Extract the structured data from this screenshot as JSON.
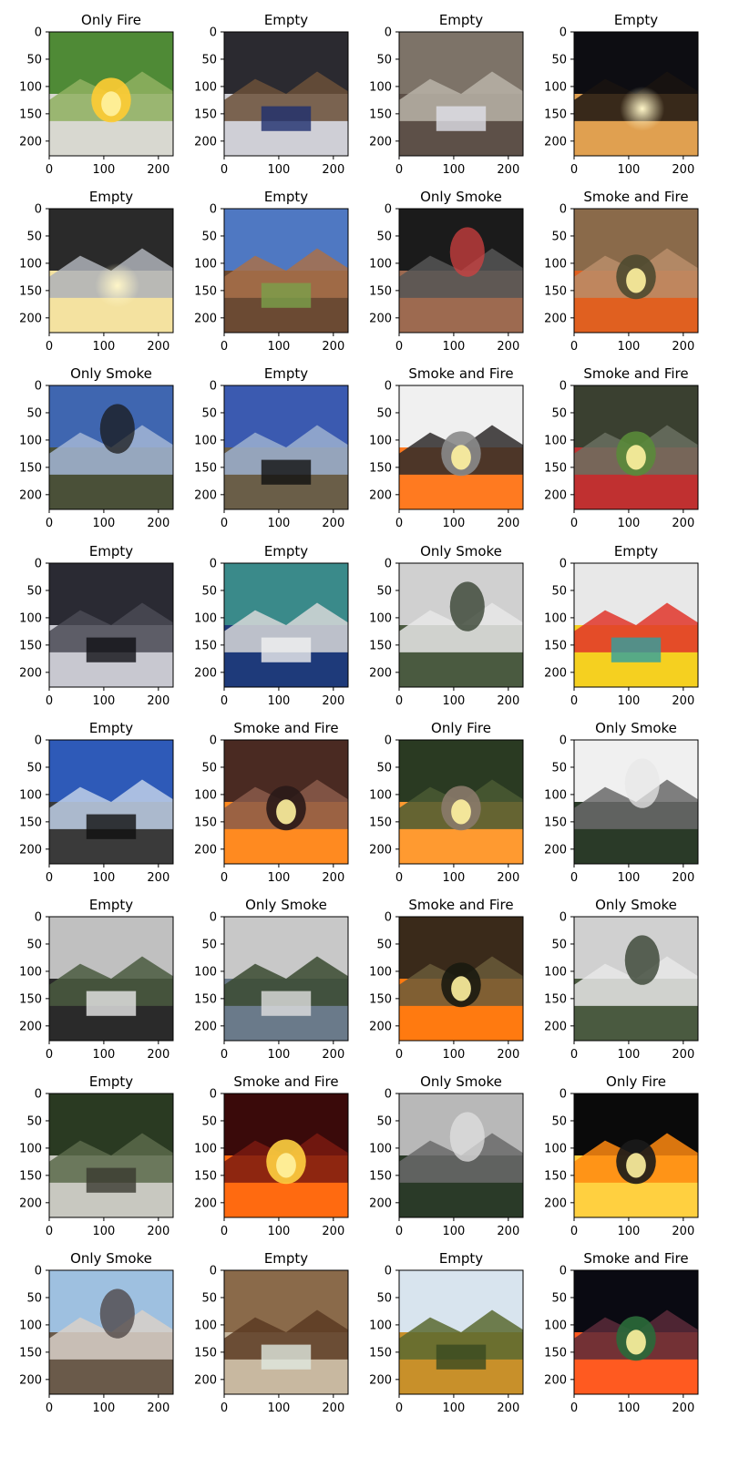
{
  "grid": {
    "rows": 8,
    "cols": 4
  },
  "axes": {
    "x_ticks": [
      0,
      100,
      200
    ],
    "y_ticks": [
      0,
      50,
      100,
      150,
      200
    ],
    "xlim": [
      0,
      227
    ],
    "ylim": [
      227,
      0
    ]
  },
  "panels": [
    {
      "title": "Only Fire",
      "scene": "fire-truck-lawn",
      "colors": [
        "#4f8a36",
        "#8fb060",
        "#d8d8d0",
        "#ffcc33"
      ]
    },
    {
      "title": "Empty",
      "scene": "lecture-hall",
      "colors": [
        "#2b2a30",
        "#6b5038",
        "#cfcfd6",
        "#1e2e6e"
      ]
    },
    {
      "title": "Empty",
      "scene": "rainy-street-crowd",
      "colors": [
        "#7d7368",
        "#b8b3a8",
        "#5d5048",
        "#e0e0e8"
      ]
    },
    {
      "title": "Empty",
      "scene": "night-horizon-glow",
      "colors": [
        "#0d0d12",
        "#1a1410",
        "#e0a050",
        "#fff0c0"
      ]
    },
    {
      "title": "Empty",
      "scene": "sunset-clouds",
      "colors": [
        "#2a2a2a",
        "#aeb1b8",
        "#f4e2a0",
        "#151515"
      ]
    },
    {
      "title": "Empty",
      "scene": "mountain-valley",
      "colors": [
        "#4f78c2",
        "#a8704a",
        "#6b4a33",
        "#7ba04a"
      ]
    },
    {
      "title": "Only Smoke",
      "scene": "building-black-smoke",
      "colors": [
        "#1b1b1b",
        "#555555",
        "#9d6a50",
        "#d04040"
      ]
    },
    {
      "title": "Smoke and Fire",
      "scene": "firefighter-brush-fire",
      "colors": [
        "#8a6a4a",
        "#b88d6a",
        "#e06020",
        "#4e4a30"
      ]
    },
    {
      "title": "Only Smoke",
      "scene": "fisheye-mountain-smoke",
      "colors": [
        "#3f66b0",
        "#a3b6d6",
        "#4a5038",
        "#1a1a1a"
      ]
    },
    {
      "title": "Empty",
      "scene": "fisheye-radio-tower",
      "colors": [
        "#3b5ab0",
        "#9cb0d0",
        "#6a5e48",
        "#101010"
      ]
    },
    {
      "title": "Smoke and Fire",
      "scene": "house-window-fire",
      "colors": [
        "#f0f0f0",
        "#2e2a2a",
        "#ff7a20",
        "#8a8a8a"
      ]
    },
    {
      "title": "Smoke and Fire",
      "scene": "fire-engine-house",
      "colors": [
        "#3a4030",
        "#6a7060",
        "#c03030",
        "#5a8a3a"
      ]
    },
    {
      "title": "Empty",
      "scene": "dark-storm-lightning",
      "colors": [
        "#2a2a33",
        "#4a4a55",
        "#c8c8d0",
        "#101015"
      ]
    },
    {
      "title": "Empty",
      "scene": "aircraft-hangar",
      "colors": [
        "#3a8a8a",
        "#d8d8d8",
        "#1e3a7a",
        "#f0f0f0"
      ]
    },
    {
      "title": "Only Smoke",
      "scene": "foggy-forest-smoke",
      "colors": [
        "#d0d0d0",
        "#e8e8e8",
        "#4a5a40",
        "#2e3a28"
      ]
    },
    {
      "title": "Empty",
      "scene": "red-product-packages",
      "colors": [
        "#e8e8e8",
        "#e0352a",
        "#f5d020",
        "#30a0a0"
      ]
    },
    {
      "title": "Empty",
      "scene": "fisheye-sky-mountains",
      "colors": [
        "#2e5ab8",
        "#c0d0e8",
        "#3a3a3a",
        "#101010"
      ]
    },
    {
      "title": "Smoke and Fire",
      "scene": "wildfire-hillside",
      "colors": [
        "#4a2a22",
        "#8a5a4a",
        "#ff8a20",
        "#2a1a18"
      ]
    },
    {
      "title": "Only Fire",
      "scene": "campfire-forest",
      "colors": [
        "#2a3a22",
        "#4a5a32",
        "#ff9a30",
        "#8a7a6a"
      ]
    },
    {
      "title": "Only Smoke",
      "scene": "mountain-smoke-plume",
      "colors": [
        "#f0f0f0",
        "#6a6a6a",
        "#2a3a28",
        "#e8e8e8"
      ]
    },
    {
      "title": "Empty",
      "scene": "camera-mountain-haze",
      "colors": [
        "#c0c0c0",
        "#4a5a40",
        "#2a2a2a",
        "#e8e8e8"
      ]
    },
    {
      "title": "Only Smoke",
      "scene": "tree-storm-cloud",
      "colors": [
        "#c8c8c8",
        "#3a4a30",
        "#6a7a8a",
        "#e0e0e0"
      ]
    },
    {
      "title": "Smoke and Fire",
      "scene": "forest-floor-fire",
      "colors": [
        "#3a2a1a",
        "#6a5a3a",
        "#ff7a10",
        "#1a1a10"
      ]
    },
    {
      "title": "Only Smoke",
      "scene": "foggy-forest-smoke-2",
      "colors": [
        "#d0d0d0",
        "#e8e8e8",
        "#4a5a40",
        "#2e3a28"
      ]
    },
    {
      "title": "Empty",
      "scene": "forest-road",
      "colors": [
        "#2a3a22",
        "#5a6a4a",
        "#c8c8c0",
        "#3a3a30"
      ]
    },
    {
      "title": "Smoke and Fire",
      "scene": "night-hill-fire",
      "colors": [
        "#3a0a0a",
        "#7a1a10",
        "#ff6a10",
        "#ffd040"
      ]
    },
    {
      "title": "Only Smoke",
      "scene": "mountain-smoke-plume-2",
      "colors": [
        "#b8b8b8",
        "#6a6a6a",
        "#2a3a28",
        "#e0e0e0"
      ]
    },
    {
      "title": "Only Fire",
      "scene": "night-burning-cross",
      "colors": [
        "#0a0a0a",
        "#ff8a10",
        "#ffd040",
        "#1a1a1a"
      ]
    },
    {
      "title": "Only Smoke",
      "scene": "cotton-field-smoke",
      "colors": [
        "#9ec0e0",
        "#d8d0c8",
        "#6a5a4a",
        "#4a4040"
      ]
    },
    {
      "title": "Empty",
      "scene": "wooden-hut",
      "colors": [
        "#8a6a4a",
        "#5a3a22",
        "#c8b8a0",
        "#e0e8e0"
      ]
    },
    {
      "title": "Empty",
      "scene": "autumn-forest",
      "colors": [
        "#d8e4ee",
        "#5a6a30",
        "#c8902a",
        "#3a4a20"
      ]
    },
    {
      "title": "Smoke and Fire",
      "scene": "night-highway-fire",
      "colors": [
        "#0a0a12",
        "#5a2a3a",
        "#ff5a20",
        "#2a6a3a"
      ]
    }
  ]
}
